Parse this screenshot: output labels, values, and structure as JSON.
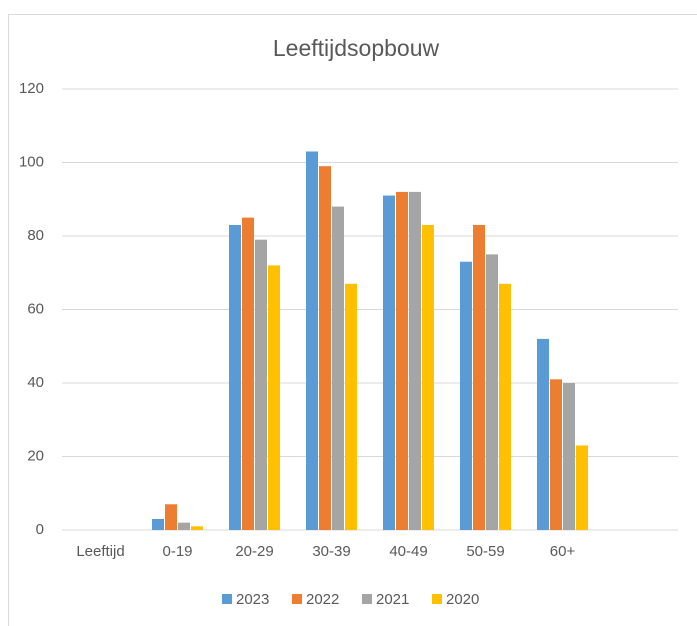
{
  "chart_data": {
    "type": "bar",
    "title": "Leeftijdsopbouw",
    "categories": [
      "Leeftijd",
      "0-19",
      "20-29",
      "30-39",
      "40-49",
      "50-59",
      "60+",
      null
    ],
    "series": [
      {
        "name": "2023",
        "color": "#5b9bd5",
        "values": [
          null,
          3,
          83,
          103,
          91,
          73,
          52,
          null
        ]
      },
      {
        "name": "2022",
        "color": "#ed7d31",
        "values": [
          null,
          7,
          85,
          99,
          92,
          83,
          41,
          null
        ]
      },
      {
        "name": "2021",
        "color": "#a5a5a5",
        "values": [
          null,
          2,
          79,
          88,
          92,
          75,
          40,
          null
        ]
      },
      {
        "name": "2020",
        "color": "#ffc000",
        "values": [
          null,
          1,
          72,
          67,
          83,
          67,
          23,
          null
        ]
      }
    ],
    "ylim": [
      0,
      120
    ],
    "yticks": [
      0,
      20,
      40,
      60,
      80,
      100,
      120
    ],
    "grid": true,
    "legend": "bottom"
  }
}
